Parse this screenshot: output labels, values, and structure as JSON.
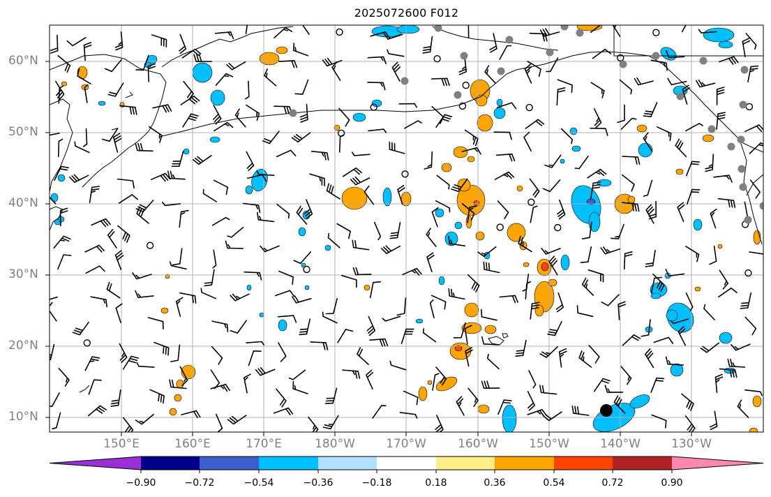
{
  "title": "2025072600 F012",
  "colors": {
    "gridline": "#b0b0b0",
    "tick_label": "#808080",
    "station_dot": "#808080",
    "coast": "#000000"
  },
  "axes": {
    "lat_labels": [
      "60°N",
      "50°N",
      "40°N",
      "30°N",
      "20°N",
      "10°N"
    ],
    "lon_labels": [
      "150°E",
      "160°E",
      "170°E",
      "180°W",
      "170°W",
      "160°W",
      "150°W",
      "140°W",
      "130°W"
    ]
  },
  "colorbar": {
    "ticks": [
      "−0.90",
      "−0.72",
      "−0.54",
      "−0.36",
      "−0.18",
      "0.18",
      "0.36",
      "0.54",
      "0.72",
      "0.90"
    ],
    "colors": [
      "#9a2fd4",
      "#00008b",
      "#3a5fcd",
      "#00bfff",
      "#b0e0ff",
      "#ffffff",
      "#ffee88",
      "#ffa500",
      "#ff4500",
      "#b22222",
      "#ff88b0"
    ]
  }
}
